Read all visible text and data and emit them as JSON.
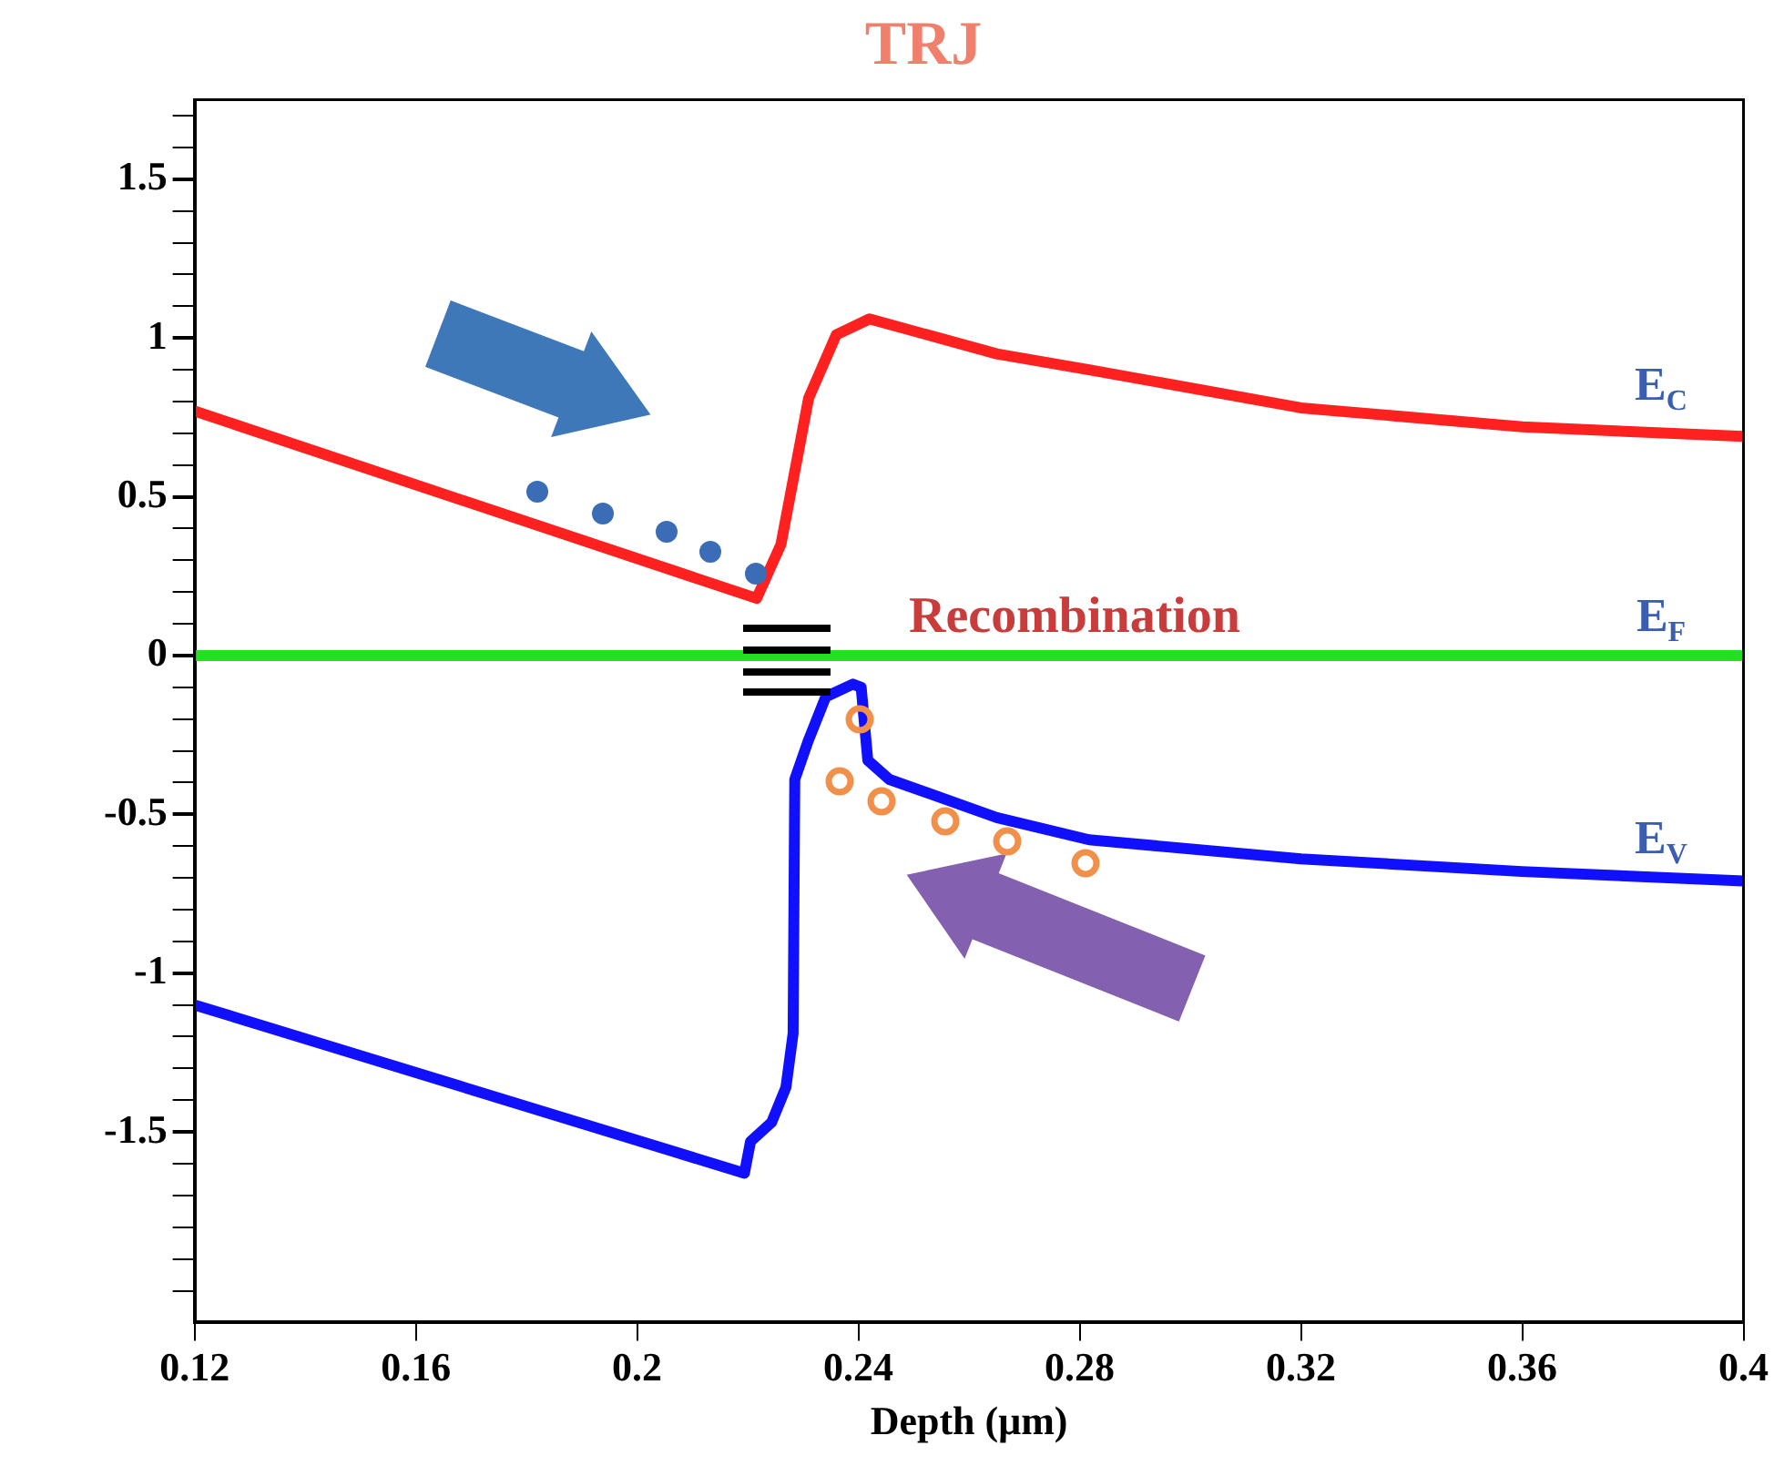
{
  "chart_data": {
    "type": "line",
    "title": "TRJ",
    "xlabel": "Depth (μm)",
    "xlim": [
      0.12,
      0.4
    ],
    "xticks": [
      0.12,
      0.16,
      0.2,
      0.24,
      0.28,
      0.32,
      0.36,
      0.4
    ],
    "ylim": [
      -2.1,
      1.75
    ],
    "yticks": [
      {
        "value": -2,
        "label": null
      },
      {
        "value": -1.9,
        "label": null
      },
      {
        "value": -1.8,
        "label": null
      },
      {
        "value": -1.7,
        "label": null
      },
      {
        "value": -1.6,
        "label": null
      },
      -1.5,
      {
        "value": -1.4,
        "label": null
      },
      {
        "value": -1.3,
        "label": null
      },
      {
        "value": -1.2,
        "label": null
      },
      {
        "value": -1.1,
        "label": null
      },
      -1,
      {
        "value": -0.9,
        "label": null
      },
      {
        "value": -0.8,
        "label": null
      },
      {
        "value": -0.7,
        "label": null
      },
      {
        "value": -0.6,
        "label": null
      },
      -0.5,
      {
        "value": -0.4,
        "label": null
      },
      {
        "value": -0.3,
        "label": null
      },
      {
        "value": -0.2,
        "label": null
      },
      {
        "value": -0.1,
        "label": null
      },
      0,
      {
        "value": 0.1,
        "label": null
      },
      {
        "value": 0.2,
        "label": null
      },
      {
        "value": 0.3,
        "label": null
      },
      {
        "value": 0.4,
        "label": null
      },
      0.5,
      {
        "value": 0.6,
        "label": null
      },
      {
        "value": 0.7,
        "label": null
      },
      {
        "value": 0.8,
        "label": null
      },
      {
        "value": 0.9,
        "label": null
      },
      1,
      {
        "value": 1.1,
        "label": null
      },
      {
        "value": 1.2,
        "label": null
      },
      {
        "value": 1.3,
        "label": null
      },
      {
        "value": 1.4,
        "label": null
      },
      1.5,
      {
        "value": 1.6,
        "label": null
      },
      {
        "value": 1.7,
        "label": null
      }
    ],
    "grid": false,
    "legend": false,
    "marker": "none",
    "line_style": "solid",
    "series": [
      {
        "color": "#ff2020",
        "x": [
          0.12,
          0.2216,
          0.226,
          0.231,
          0.236,
          0.242,
          0.265,
          0.2817,
          0.32,
          0.36,
          0.4
        ],
        "values": [
          0.77,
          0.18,
          0.35,
          0.81,
          1.01,
          1.06,
          0.95,
          0.9,
          0.78,
          0.72,
          0.69
        ]
      },
      {
        "color": "#22e022",
        "x": [
          0.12,
          0.4
        ],
        "values": [
          0,
          0
        ]
      },
      {
        "color": "#1010ff",
        "x": [
          0.12,
          0.2194,
          0.2205,
          0.2243,
          0.2269,
          0.2282,
          0.2285,
          0.2309,
          0.2341,
          0.239,
          0.2405,
          0.2417,
          0.2456,
          0.265,
          0.2817,
          0.32,
          0.36,
          0.4
        ],
        "values": [
          -1.1,
          -1.63,
          -1.53,
          -1.47,
          -1.36,
          -1.19,
          -0.39,
          -0.27,
          -0.13,
          -0.09,
          -0.1,
          -0.33,
          -0.39,
          -0.51,
          -0.58,
          -0.64,
          -0.68,
          -0.71
        ]
      }
    ],
    "annotations": [
      "E$_{C}$",
      "E$_{F}$",
      "E$_{V}$",
      "Recombination"
    ]
  }
}
